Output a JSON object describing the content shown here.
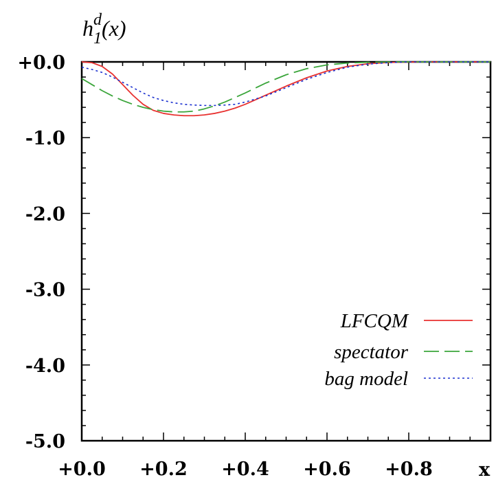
{
  "chart_data": {
    "type": "line",
    "xlabel": "x",
    "ylabel": {
      "main": "h",
      "superscript": "d",
      "subscript": "1",
      "suffix": "(x)"
    },
    "xlim": [
      0.0,
      1.0
    ],
    "ylim": [
      -5.0,
      0.0
    ],
    "x_ticks": [
      "+0.0",
      "+0.2",
      "+0.4",
      "+0.6",
      "+0.8"
    ],
    "x_tick_values": [
      0.0,
      0.2,
      0.4,
      0.6,
      0.8
    ],
    "y_ticks": [
      "+0.0",
      "-1.0",
      "-2.0",
      "-3.0",
      "-4.0",
      "-5.0"
    ],
    "y_tick_values": [
      0.0,
      -1.0,
      -2.0,
      -3.0,
      -4.0,
      -5.0
    ],
    "grid": false,
    "legend_position": "bottom-right",
    "series": [
      {
        "name": "LFCQM",
        "color": "#e8312f",
        "style": "solid",
        "x": [
          0.0,
          0.025,
          0.05,
          0.075,
          0.1,
          0.125,
          0.15,
          0.175,
          0.2,
          0.225,
          0.25,
          0.275,
          0.3,
          0.325,
          0.35,
          0.375,
          0.4,
          0.45,
          0.5,
          0.55,
          0.6,
          0.65,
          0.7,
          0.75,
          0.8,
          0.85,
          0.9,
          0.95,
          1.0
        ],
        "y": [
          0.0,
          -0.01,
          -0.06,
          -0.16,
          -0.3,
          -0.44,
          -0.56,
          -0.64,
          -0.68,
          -0.7,
          -0.71,
          -0.71,
          -0.7,
          -0.68,
          -0.65,
          -0.61,
          -0.56,
          -0.44,
          -0.32,
          -0.21,
          -0.12,
          -0.06,
          -0.025,
          -0.008,
          -0.002,
          0.0,
          0.0,
          0.0,
          0.0
        ]
      },
      {
        "name": "spectator",
        "color": "#3aa53a",
        "style": "dashed",
        "x": [
          0.0,
          0.025,
          0.05,
          0.075,
          0.1,
          0.125,
          0.15,
          0.175,
          0.2,
          0.225,
          0.25,
          0.275,
          0.3,
          0.325,
          0.35,
          0.375,
          0.4,
          0.45,
          0.5,
          0.55,
          0.6,
          0.65,
          0.7,
          0.75,
          0.8,
          0.85,
          0.9,
          0.95,
          1.0
        ],
        "y": [
          -0.22,
          -0.3,
          -0.38,
          -0.45,
          -0.51,
          -0.56,
          -0.6,
          -0.63,
          -0.65,
          -0.66,
          -0.66,
          -0.65,
          -0.62,
          -0.58,
          -0.53,
          -0.47,
          -0.41,
          -0.28,
          -0.17,
          -0.09,
          -0.04,
          -0.015,
          -0.005,
          -0.001,
          0.0,
          0.0,
          0.0,
          0.0,
          0.0
        ]
      },
      {
        "name": "bag model",
        "color": "#1a2fcf",
        "style": "dotted",
        "x": [
          0.0,
          0.025,
          0.05,
          0.075,
          0.1,
          0.125,
          0.15,
          0.175,
          0.2,
          0.225,
          0.25,
          0.275,
          0.3,
          0.325,
          0.35,
          0.375,
          0.4,
          0.45,
          0.5,
          0.55,
          0.6,
          0.65,
          0.7,
          0.75,
          0.8,
          0.85,
          0.9,
          0.95,
          1.0
        ],
        "y": [
          -0.07,
          -0.1,
          -0.14,
          -0.2,
          -0.27,
          -0.34,
          -0.41,
          -0.47,
          -0.51,
          -0.54,
          -0.56,
          -0.57,
          -0.575,
          -0.575,
          -0.57,
          -0.56,
          -0.53,
          -0.45,
          -0.34,
          -0.23,
          -0.14,
          -0.07,
          -0.03,
          -0.01,
          0.0,
          0.0,
          0.0,
          0.0,
          0.0
        ]
      }
    ]
  }
}
